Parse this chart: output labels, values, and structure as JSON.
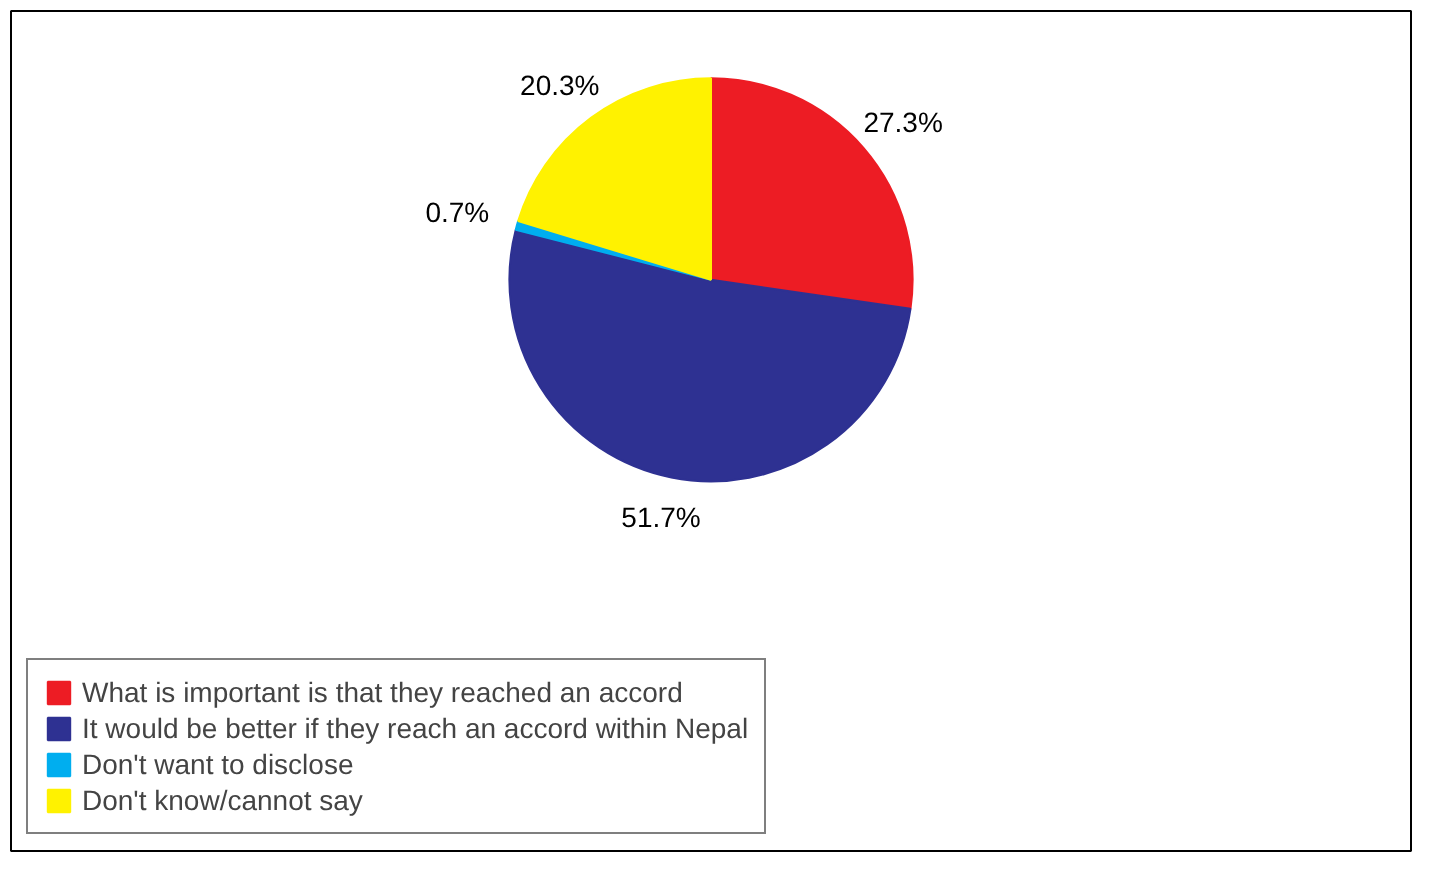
{
  "chart_data": {
    "type": "pie",
    "categories": [
      "What is important is that they reached an accord",
      "It would be better if they reach an accord within Nepal",
      "Don't want to disclose",
      "Don't know/cannot say"
    ],
    "values": [
      27.3,
      51.7,
      0.7,
      20.3
    ],
    "colors": [
      "#ed1c24",
      "#2e3192",
      "#00aeef",
      "#fff200"
    ],
    "value_labels": [
      "27.3%",
      "51.7%",
      "0.7%",
      "20.3%"
    ],
    "legend": "bottom"
  }
}
